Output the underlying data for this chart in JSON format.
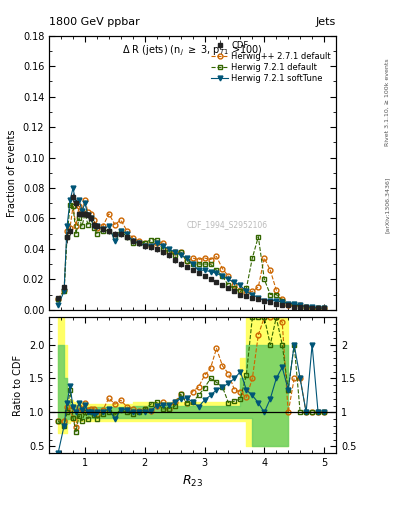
{
  "title_top": "1800 GeV ppbar",
  "title_right": "Jets",
  "plot_title": "Δ R (jets) (nₗ ≥ 3, p_{T1} >100)",
  "ylabel_main": "Fraction of events",
  "ylabel_ratio": "Ratio to CDF",
  "xlabel": "R$_{23}$",
  "right_label_top": "Rivet 3.1.10, ≥ 100k events",
  "right_label_bottom": "[arXiv:1306.3436]",
  "watermark": "CDF_1994_S2952106",
  "xlim": [
    0.4,
    5.2
  ],
  "ylim_main": [
    0.0,
    0.18
  ],
  "ylim_ratio": [
    0.4,
    2.4
  ],
  "yticks_main": [
    0.0,
    0.02,
    0.04,
    0.06,
    0.08,
    0.1,
    0.12,
    0.14,
    0.16,
    0.18
  ],
  "yticks_ratio": [
    0.5,
    1.0,
    1.5,
    2.0
  ],
  "xticks": [
    1,
    2,
    3,
    4,
    5
  ],
  "colors": {
    "cdf": "#222222",
    "herwig_pp": "#cc6600",
    "herwig_721_def": "#336600",
    "herwig_721_soft": "#005577"
  },
  "cdf_x": [
    0.55,
    0.65,
    0.7,
    0.75,
    0.8,
    0.85,
    0.9,
    0.95,
    1.0,
    1.05,
    1.1,
    1.15,
    1.2,
    1.3,
    1.4,
    1.5,
    1.6,
    1.7,
    1.8,
    1.9,
    2.0,
    2.1,
    2.2,
    2.3,
    2.4,
    2.5,
    2.6,
    2.7,
    2.8,
    2.9,
    3.0,
    3.1,
    3.2,
    3.3,
    3.4,
    3.5,
    3.6,
    3.7,
    3.8,
    3.9,
    4.0,
    4.1,
    4.2,
    4.3,
    4.4,
    4.5,
    4.6,
    4.7,
    4.8,
    4.9,
    5.0
  ],
  "cdf_y": [
    0.008,
    0.015,
    0.048,
    0.052,
    0.074,
    0.07,
    0.063,
    0.063,
    0.063,
    0.062,
    0.06,
    0.056,
    0.055,
    0.053,
    0.052,
    0.05,
    0.05,
    0.048,
    0.045,
    0.044,
    0.042,
    0.041,
    0.04,
    0.038,
    0.036,
    0.033,
    0.03,
    0.028,
    0.026,
    0.024,
    0.022,
    0.02,
    0.018,
    0.016,
    0.014,
    0.012,
    0.01,
    0.009,
    0.008,
    0.007,
    0.006,
    0.005,
    0.004,
    0.003,
    0.003,
    0.002,
    0.002,
    0.002,
    0.001,
    0.001,
    0.001
  ],
  "cdf_yerr": [
    0.001,
    0.002,
    0.004,
    0.003,
    0.003,
    0.003,
    0.002,
    0.002,
    0.002,
    0.002,
    0.002,
    0.002,
    0.002,
    0.002,
    0.002,
    0.002,
    0.002,
    0.002,
    0.002,
    0.002,
    0.002,
    0.002,
    0.002,
    0.002,
    0.002,
    0.002,
    0.002,
    0.001,
    0.001,
    0.001,
    0.001,
    0.001,
    0.001,
    0.001,
    0.001,
    0.001,
    0.001,
    0.001,
    0.001,
    0.001,
    0.001,
    0.001,
    0.001,
    0.001,
    0.001,
    0.001,
    0.001,
    0.001,
    0.001,
    0.001,
    0.001
  ],
  "hppx": [
    0.55,
    0.65,
    0.7,
    0.75,
    0.8,
    0.85,
    0.9,
    0.95,
    1.0,
    1.05,
    1.1,
    1.15,
    1.2,
    1.3,
    1.4,
    1.5,
    1.6,
    1.7,
    1.8,
    1.9,
    2.0,
    2.1,
    2.2,
    2.3,
    2.4,
    2.5,
    2.6,
    2.7,
    2.8,
    2.9,
    3.0,
    3.1,
    3.2,
    3.3,
    3.4,
    3.5,
    3.6,
    3.7,
    3.8,
    3.9,
    4.0,
    4.1,
    4.2,
    4.3,
    4.4,
    4.5,
    4.6,
    4.7,
    4.8,
    4.9,
    5.0
  ],
  "hppy": [
    0.007,
    0.013,
    0.052,
    0.054,
    0.068,
    0.055,
    0.068,
    0.065,
    0.072,
    0.064,
    0.063,
    0.059,
    0.054,
    0.055,
    0.063,
    0.056,
    0.059,
    0.052,
    0.047,
    0.045,
    0.044,
    0.042,
    0.044,
    0.044,
    0.038,
    0.038,
    0.038,
    0.032,
    0.034,
    0.033,
    0.034,
    0.033,
    0.035,
    0.027,
    0.022,
    0.016,
    0.013,
    0.011,
    0.012,
    0.015,
    0.034,
    0.026,
    0.013,
    0.007,
    0.003,
    0.003,
    0.003,
    0.002,
    0.001,
    0.001,
    0.001
  ],
  "h721dx": [
    0.55,
    0.65,
    0.7,
    0.75,
    0.8,
    0.85,
    0.9,
    0.95,
    1.0,
    1.05,
    1.1,
    1.15,
    1.2,
    1.3,
    1.4,
    1.5,
    1.6,
    1.7,
    1.8,
    1.9,
    2.0,
    2.1,
    2.2,
    2.3,
    2.4,
    2.5,
    2.6,
    2.7,
    2.8,
    2.9,
    3.0,
    3.1,
    3.2,
    3.3,
    3.4,
    3.5,
    3.6,
    3.7,
    3.8,
    3.9,
    4.0,
    4.1,
    4.2,
    4.3,
    4.4,
    4.5,
    4.6,
    4.7,
    4.8,
    4.9,
    5.0
  ],
  "h721dy": [
    0.007,
    0.012,
    0.048,
    0.069,
    0.068,
    0.05,
    0.06,
    0.055,
    0.063,
    0.056,
    0.06,
    0.054,
    0.05,
    0.052,
    0.052,
    0.048,
    0.052,
    0.048,
    0.044,
    0.044,
    0.044,
    0.046,
    0.046,
    0.04,
    0.038,
    0.036,
    0.038,
    0.032,
    0.03,
    0.03,
    0.03,
    0.03,
    0.026,
    0.022,
    0.016,
    0.014,
    0.012,
    0.014,
    0.034,
    0.048,
    0.02,
    0.01,
    0.01,
    0.006,
    0.004,
    0.004,
    0.002,
    0.002,
    0.001,
    0.001,
    0.001
  ],
  "h721sx": [
    0.55,
    0.65,
    0.7,
    0.75,
    0.8,
    0.85,
    0.9,
    0.95,
    1.0,
    1.05,
    1.1,
    1.15,
    1.2,
    1.3,
    1.4,
    1.5,
    1.6,
    1.7,
    1.8,
    1.9,
    2.0,
    2.1,
    2.2,
    2.3,
    2.4,
    2.5,
    2.6,
    2.7,
    2.8,
    2.9,
    3.0,
    3.1,
    3.2,
    3.3,
    3.4,
    3.5,
    3.6,
    3.7,
    3.8,
    3.9,
    4.0,
    4.1,
    4.2,
    4.3,
    4.4,
    4.5,
    4.6,
    4.7,
    4.8,
    4.9,
    5.0
  ],
  "h721sy": [
    0.003,
    0.012,
    0.055,
    0.072,
    0.08,
    0.07,
    0.072,
    0.065,
    0.07,
    0.062,
    0.06,
    0.055,
    0.055,
    0.053,
    0.055,
    0.045,
    0.052,
    0.05,
    0.045,
    0.044,
    0.042,
    0.042,
    0.044,
    0.042,
    0.04,
    0.038,
    0.036,
    0.034,
    0.03,
    0.026,
    0.026,
    0.025,
    0.024,
    0.022,
    0.02,
    0.018,
    0.016,
    0.012,
    0.01,
    0.008,
    0.006,
    0.006,
    0.006,
    0.005,
    0.004,
    0.004,
    0.003,
    0.002,
    0.002,
    0.001,
    0.001
  ],
  "band_green_lo": [
    0.85,
    0.85,
    0.9,
    0.92,
    0.92,
    0.92,
    0.92,
    0.92,
    0.92,
    0.92,
    0.92,
    0.92,
    0.92,
    0.92,
    0.92,
    0.92,
    0.92,
    0.92,
    0.92,
    0.92,
    0.92,
    0.92,
    0.92,
    0.92,
    0.92,
    0.92,
    0.92,
    0.92,
    0.92,
    0.92,
    0.92,
    0.92,
    0.92,
    0.92,
    0.92,
    0.92,
    0.92,
    0.92,
    0.5,
    0.5,
    0.5,
    0.5,
    0.5,
    0.5,
    0.5
  ],
  "band_green_hi": [
    2.0,
    1.5,
    1.15,
    1.12,
    1.1,
    1.1,
    1.1,
    1.1,
    1.08,
    1.08,
    1.08,
    1.08,
    1.08,
    1.08,
    1.08,
    1.08,
    1.08,
    1.08,
    1.1,
    1.1,
    1.1,
    1.1,
    1.1,
    1.1,
    1.1,
    1.1,
    1.1,
    1.1,
    1.1,
    1.1,
    1.1,
    1.1,
    1.1,
    1.1,
    1.1,
    1.1,
    1.5,
    2.0,
    2.0,
    2.0,
    2.0,
    2.0,
    2.0,
    2.0,
    2.0
  ],
  "band_yellow_lo": [
    0.7,
    0.7,
    0.85,
    0.88,
    0.88,
    0.88,
    0.88,
    0.88,
    0.88,
    0.88,
    0.88,
    0.88,
    0.88,
    0.88,
    0.88,
    0.88,
    0.88,
    0.88,
    0.88,
    0.88,
    0.88,
    0.88,
    0.88,
    0.88,
    0.88,
    0.88,
    0.88,
    0.88,
    0.88,
    0.88,
    0.88,
    0.88,
    0.88,
    0.88,
    0.88,
    0.88,
    0.88,
    0.5,
    0.5,
    0.5,
    0.5,
    0.5,
    0.5,
    0.5,
    0.5
  ],
  "band_yellow_hi": [
    2.4,
    2.0,
    1.2,
    1.18,
    1.15,
    1.15,
    1.15,
    1.15,
    1.12,
    1.12,
    1.12,
    1.12,
    1.12,
    1.12,
    1.12,
    1.12,
    1.12,
    1.12,
    1.15,
    1.15,
    1.15,
    1.15,
    1.15,
    1.15,
    1.15,
    1.15,
    1.15,
    1.15,
    1.15,
    1.15,
    1.15,
    1.15,
    1.15,
    1.15,
    1.15,
    1.15,
    1.8,
    2.4,
    2.4,
    2.4,
    2.4,
    2.4,
    2.4,
    2.4,
    2.4
  ],
  "band_x": [
    0.55,
    0.65,
    0.7,
    0.75,
    0.8,
    0.85,
    0.9,
    0.95,
    1.0,
    1.05,
    1.1,
    1.15,
    1.2,
    1.3,
    1.4,
    1.5,
    1.6,
    1.7,
    1.8,
    1.9,
    2.0,
    2.1,
    2.2,
    2.3,
    2.4,
    2.5,
    2.6,
    2.7,
    2.8,
    2.9,
    3.0,
    3.1,
    3.2,
    3.3,
    3.4,
    3.5,
    3.6,
    3.7,
    3.8,
    3.9,
    4.0,
    4.1,
    4.2,
    4.3,
    4.4
  ]
}
